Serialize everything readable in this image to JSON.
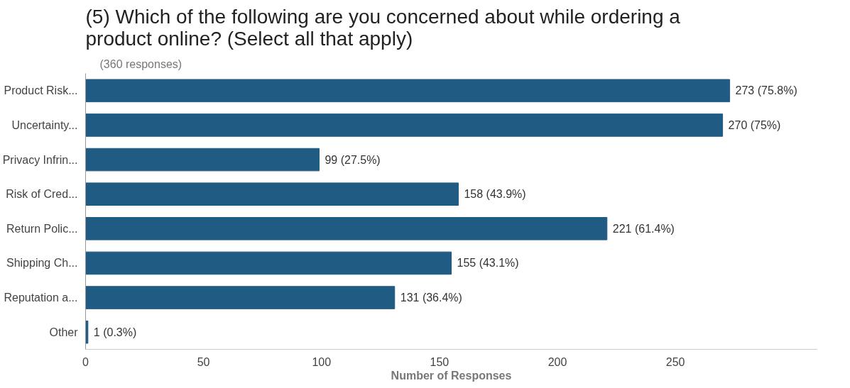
{
  "chart_data": {
    "type": "bar",
    "orientation": "horizontal",
    "title": "(5) Which of the following are you concerned about while ordering a product online? (Select all that apply)",
    "subtitle": "(360 responses)",
    "xlabel": "Number of Responses",
    "categories": [
      "Product Risk...",
      "Uncertainty...",
      "Privacy Infrin...",
      "Risk of Cred...",
      "Return Polic...",
      "Shipping Ch...",
      "Reputation a...",
      "Other"
    ],
    "values": [
      273,
      270,
      99,
      158,
      221,
      155,
      131,
      1
    ],
    "value_labels": [
      "273 (75.8%)",
      "270 (75%)",
      "99 (27.5%)",
      "158 (43.9%)",
      "221 (61.4%)",
      "155 (43.1%)",
      "131 (36.4%)",
      "1 (0.3%)"
    ],
    "color": "#1f5b82",
    "xlim": [
      0,
      310
    ],
    "xticks": [
      0,
      50,
      100,
      150,
      200,
      250
    ],
    "grid": false
  }
}
